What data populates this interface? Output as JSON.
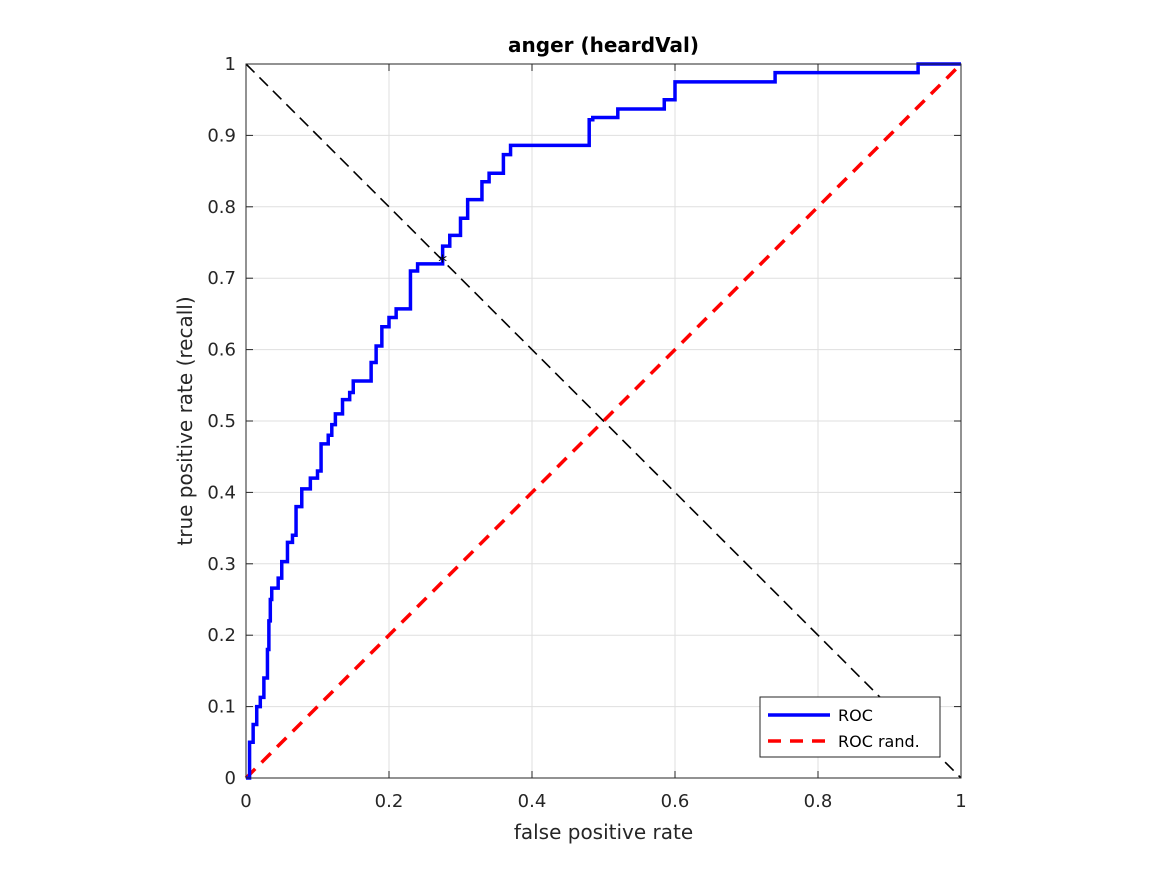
{
  "chart_data": {
    "type": "line",
    "title": "anger (heardVal)",
    "xlabel": "false positive rate",
    "ylabel": "true positive rate (recall)",
    "xlim": [
      0,
      1
    ],
    "ylim": [
      0,
      1
    ],
    "xticks": [
      0,
      0.2,
      0.4,
      0.6,
      0.8,
      1
    ],
    "xtick_labels": [
      "0",
      "0.2",
      "0.4",
      "0.6",
      "0.8",
      "1"
    ],
    "yticks": [
      0,
      0.1,
      0.2,
      0.3,
      0.4,
      0.5,
      0.6,
      0.7,
      0.8,
      0.9,
      1
    ],
    "ytick_labels": [
      "0",
      "0.1",
      "0.2",
      "0.3",
      "0.4",
      "0.5",
      "0.6",
      "0.7",
      "0.8",
      "0.9",
      "1"
    ],
    "grid": true,
    "legend_position": "bottom-right",
    "series": [
      {
        "name": "ROC",
        "style": "solid",
        "color": "#0000ff",
        "x": [
          0,
          0.005,
          0.005,
          0.01,
          0.01,
          0.015,
          0.015,
          0.02,
          0.02,
          0.025,
          0.025,
          0.03,
          0.03,
          0.032,
          0.032,
          0.034,
          0.034,
          0.036,
          0.036,
          0.045,
          0.045,
          0.05,
          0.05,
          0.058,
          0.058,
          0.065,
          0.065,
          0.07,
          0.07,
          0.078,
          0.078,
          0.09,
          0.09,
          0.1,
          0.1,
          0.105,
          0.105,
          0.115,
          0.115,
          0.12,
          0.12,
          0.125,
          0.125,
          0.135,
          0.135,
          0.145,
          0.145,
          0.15,
          0.15,
          0.175,
          0.175,
          0.182,
          0.182,
          0.19,
          0.19,
          0.2,
          0.2,
          0.21,
          0.21,
          0.23,
          0.23,
          0.24,
          0.24,
          0.275,
          0.275,
          0.285,
          0.285,
          0.3,
          0.3,
          0.31,
          0.31,
          0.33,
          0.33,
          0.34,
          0.34,
          0.36,
          0.36,
          0.37,
          0.37,
          0.48,
          0.48,
          0.485,
          0.485,
          0.52,
          0.52,
          0.585,
          0.585,
          0.6,
          0.6,
          0.74,
          0.74,
          0.94,
          0.94,
          1
        ],
        "y": [
          0,
          0,
          0.05,
          0.05,
          0.075,
          0.075,
          0.1,
          0.1,
          0.113,
          0.113,
          0.14,
          0.14,
          0.18,
          0.18,
          0.22,
          0.22,
          0.25,
          0.25,
          0.266,
          0.266,
          0.28,
          0.28,
          0.303,
          0.303,
          0.33,
          0.33,
          0.34,
          0.34,
          0.38,
          0.38,
          0.405,
          0.405,
          0.42,
          0.42,
          0.43,
          0.43,
          0.468,
          0.468,
          0.48,
          0.48,
          0.495,
          0.495,
          0.51,
          0.51,
          0.53,
          0.53,
          0.54,
          0.54,
          0.556,
          0.556,
          0.582,
          0.582,
          0.605,
          0.605,
          0.632,
          0.632,
          0.645,
          0.645,
          0.657,
          0.657,
          0.71,
          0.71,
          0.72,
          0.72,
          0.745,
          0.745,
          0.76,
          0.76,
          0.784,
          0.784,
          0.81,
          0.81,
          0.835,
          0.835,
          0.847,
          0.847,
          0.873,
          0.873,
          0.886,
          0.886,
          0.922,
          0.922,
          0.925,
          0.925,
          0.937,
          0.937,
          0.95,
          0.95,
          0.975,
          0.975,
          0.988,
          0.988,
          1,
          1
        ]
      },
      {
        "name": "ROC rand.",
        "style": "dashed",
        "color": "#ff0000",
        "x": [
          0,
          1
        ],
        "y": [
          0,
          1
        ]
      }
    ],
    "reference_line": {
      "color": "#000000",
      "style": "dashed",
      "x": [
        0,
        1
      ],
      "y": [
        1,
        0
      ]
    },
    "marker": {
      "symbol": "*",
      "x": 0.275,
      "y": 0.725,
      "color": "#000000"
    }
  }
}
